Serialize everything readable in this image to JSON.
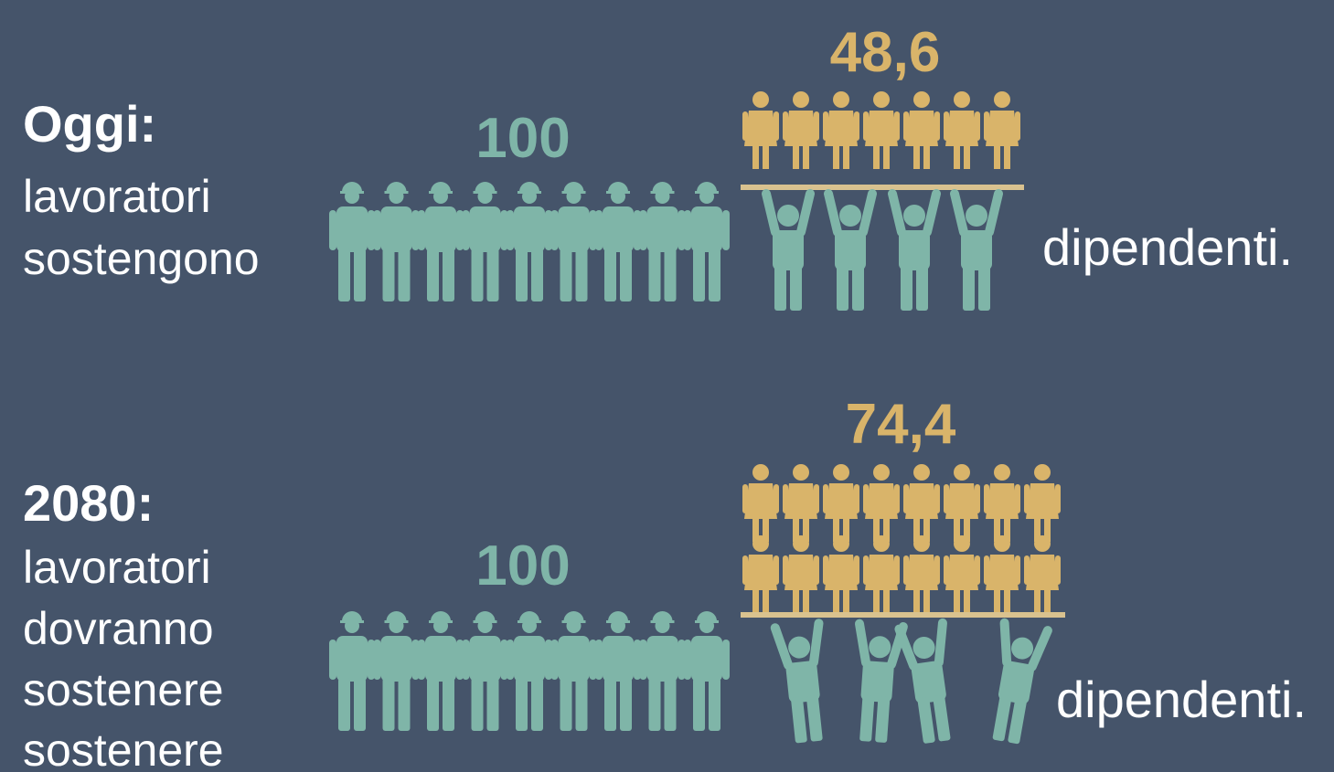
{
  "rows": [
    {
      "heading": "Oggi:",
      "lines": [
        "lavoratori",
        "sostengono"
      ],
      "workers": "100",
      "dependents": "48,6",
      "suffix": "dipendenti."
    },
    {
      "heading": "2080:",
      "lines": [
        "lavoratori",
        "dovranno",
        "sostenere",
        "sostenere"
      ],
      "workers": "100",
      "dependents": "74,4",
      "suffix": "dipendenti."
    }
  ]
}
